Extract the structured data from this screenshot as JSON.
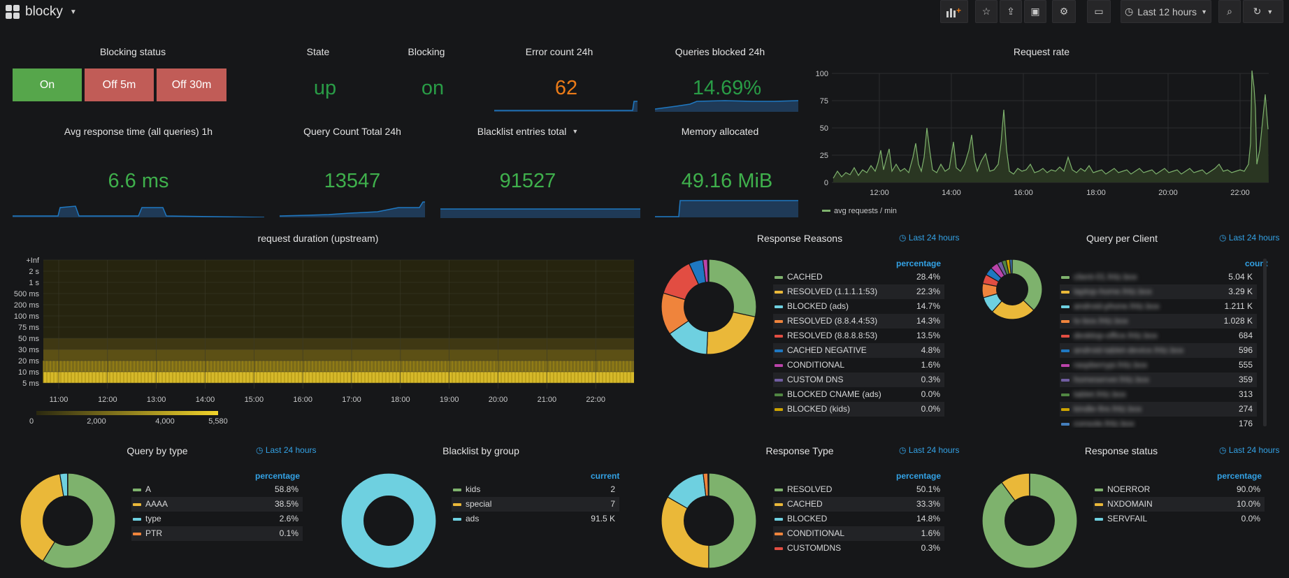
{
  "topbar": {
    "dashboard_title": "blocky",
    "time_range": "Last 12 hours"
  },
  "blocking_status": {
    "title": "Blocking status",
    "buttons": [
      "On",
      "Off 5m",
      "Off 30m"
    ]
  },
  "state": {
    "title": "State",
    "value": "up"
  },
  "blocking": {
    "title": "Blocking",
    "value": "on"
  },
  "error_count": {
    "title": "Error count 24h",
    "value": "62"
  },
  "queries_blocked": {
    "title": "Queries blocked 24h",
    "value": "14.69%"
  },
  "avg_response": {
    "title": "Avg response time (all queries) 1h",
    "value": "6.6 ms"
  },
  "query_count": {
    "title": "Query Count Total 24h",
    "value": "13547"
  },
  "blacklist_entries": {
    "title": "Blacklist entries total",
    "value": "91527"
  },
  "memory": {
    "title": "Memory allocated",
    "value": "49.16 MiB"
  },
  "request_rate": {
    "title": "Request rate",
    "legend": "avg requests / min",
    "y_ticks": [
      "100",
      "75",
      "50",
      "25",
      "0"
    ],
    "x_ticks": [
      "12:00",
      "14:00",
      "16:00",
      "18:00",
      "20:00",
      "22:00"
    ]
  },
  "request_duration": {
    "title": "request duration (upstream)",
    "y_buckets": [
      "+Inf",
      "2 s",
      "1 s",
      "500 ms",
      "200 ms",
      "100 ms",
      "75 ms",
      "50 ms",
      "30 ms",
      "20 ms",
      "10 ms",
      "5 ms"
    ],
    "x_ticks": [
      "11:00",
      "12:00",
      "13:00",
      "14:00",
      "15:00",
      "16:00",
      "17:00",
      "18:00",
      "19:00",
      "20:00",
      "21:00",
      "22:00"
    ],
    "scale_ticks": [
      "0",
      "2,000",
      "4,000",
      "5,580"
    ]
  },
  "response_reasons": {
    "title": "Response Reasons",
    "time_label": "Last 24 hours",
    "column": "percentage",
    "items": [
      {
        "name": "CACHED",
        "value": "28.4%",
        "pct": 28.4,
        "color": "#7eb26d"
      },
      {
        "name": "RESOLVED (1.1.1.1:53)",
        "value": "22.3%",
        "pct": 22.3,
        "color": "#eab839"
      },
      {
        "name": "BLOCKED (ads)",
        "value": "14.7%",
        "pct": 14.7,
        "color": "#6ed0e0"
      },
      {
        "name": "RESOLVED (8.8.4.4:53)",
        "value": "14.3%",
        "pct": 14.3,
        "color": "#ef843c"
      },
      {
        "name": "RESOLVED (8.8.8.8:53)",
        "value": "13.5%",
        "pct": 13.5,
        "color": "#e24d42"
      },
      {
        "name": "CACHED NEGATIVE",
        "value": "4.8%",
        "pct": 4.8,
        "color": "#1f78c1"
      },
      {
        "name": "CONDITIONAL",
        "value": "1.6%",
        "pct": 1.6,
        "color": "#ba43a9"
      },
      {
        "name": "CUSTOM DNS",
        "value": "0.3%",
        "pct": 0.3,
        "color": "#705da0"
      },
      {
        "name": "BLOCKED CNAME (ads)",
        "value": "0.0%",
        "pct": 0.05,
        "color": "#508642"
      },
      {
        "name": "BLOCKED (kids)",
        "value": "0.0%",
        "pct": 0.05,
        "color": "#cca300"
      }
    ]
  },
  "query_per_client": {
    "title": "Query per Client",
    "time_label": "Last 24 hours",
    "column": "count",
    "items": [
      {
        "name": "client-01.fritz.box",
        "value": "5.04 K",
        "pct": 5040,
        "color": "#7eb26d"
      },
      {
        "name": "laptop-home.fritz.box",
        "value": "3.29 K",
        "pct": 3290,
        "color": "#eab839"
      },
      {
        "name": "android-phone.fritz.box",
        "value": "1.211 K",
        "pct": 1211,
        "color": "#6ed0e0"
      },
      {
        "name": "tv-box.fritz.box",
        "value": "1.028 K",
        "pct": 1028,
        "color": "#ef843c"
      },
      {
        "name": "desktop-office.fritz.box",
        "value": "684",
        "pct": 684,
        "color": "#e24d42"
      },
      {
        "name": "android-tablet-device.fritz.box",
        "value": "596",
        "pct": 596,
        "color": "#1f78c1"
      },
      {
        "name": "raspberrypi.fritz.box",
        "value": "555",
        "pct": 555,
        "color": "#ba43a9"
      },
      {
        "name": "homeserver.fritz.box",
        "value": "359",
        "pct": 359,
        "color": "#705da0"
      },
      {
        "name": "tablet.fritz.box",
        "value": "313",
        "pct": 313,
        "color": "#508642"
      },
      {
        "name": "kindle-fire.fritz.box",
        "value": "274",
        "pct": 274,
        "color": "#cca300"
      },
      {
        "name": "console.fritz.box",
        "value": "176",
        "pct": 176,
        "color": "#447ebc"
      }
    ]
  },
  "query_by_type": {
    "title": "Query by type",
    "time_label": "Last 24 hours",
    "column": "percentage",
    "items": [
      {
        "name": "A",
        "value": "58.8%",
        "pct": 58.8,
        "color": "#7eb26d"
      },
      {
        "name": "AAAA",
        "value": "38.5%",
        "pct": 38.5,
        "color": "#eab839"
      },
      {
        "name": "type",
        "value": "2.6%",
        "pct": 2.6,
        "color": "#6ed0e0"
      },
      {
        "name": "PTR",
        "value": "0.1%",
        "pct": 0.1,
        "color": "#ef843c"
      }
    ]
  },
  "blacklist_by_group": {
    "title": "Blacklist by group",
    "column": "current",
    "items": [
      {
        "name": "kids",
        "value": "2",
        "pct": 2,
        "color": "#7eb26d"
      },
      {
        "name": "special",
        "value": "7",
        "pct": 7,
        "color": "#eab839"
      },
      {
        "name": "ads",
        "value": "91.5 K",
        "pct": 91518,
        "color": "#6ed0e0"
      }
    ]
  },
  "response_type": {
    "title": "Response Type",
    "time_label": "Last 24 hours",
    "column": "percentage",
    "items": [
      {
        "name": "RESOLVED",
        "value": "50.1%",
        "pct": 50.1,
        "color": "#7eb26d"
      },
      {
        "name": "CACHED",
        "value": "33.3%",
        "pct": 33.3,
        "color": "#eab839"
      },
      {
        "name": "BLOCKED",
        "value": "14.8%",
        "pct": 14.8,
        "color": "#6ed0e0"
      },
      {
        "name": "CONDITIONAL",
        "value": "1.6%",
        "pct": 1.6,
        "color": "#ef843c"
      },
      {
        "name": "CUSTOMDNS",
        "value": "0.3%",
        "pct": 0.3,
        "color": "#e24d42"
      }
    ]
  },
  "response_status": {
    "title": "Response status",
    "time_label": "Last 24 hours",
    "column": "percentage",
    "items": [
      {
        "name": "NOERROR",
        "value": "90.0%",
        "pct": 90.0,
        "color": "#7eb26d"
      },
      {
        "name": "NXDOMAIN",
        "value": "10.0%",
        "pct": 10.0,
        "color": "#eab839"
      },
      {
        "name": "SERVFAIL",
        "value": "0.0%",
        "pct": 0.05,
        "color": "#6ed0e0"
      }
    ]
  }
}
